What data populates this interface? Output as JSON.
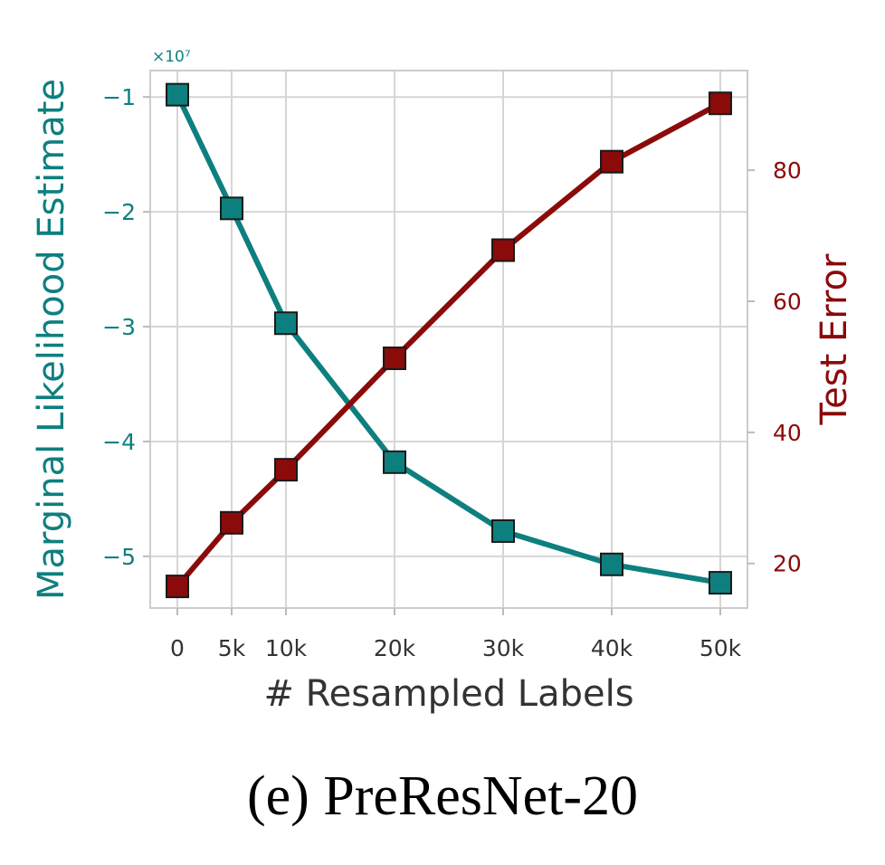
{
  "colors": {
    "left_series": "#0e7f7f",
    "right_series": "#8b0a0a",
    "grid": "#d6d6d6",
    "marker_edge": "#1a1a1a"
  },
  "caption": "(e) PreResNet-20",
  "chart_data": {
    "type": "line",
    "x": [
      0,
      5000,
      10000,
      20000,
      30000,
      40000,
      50000
    ],
    "xtick_labels": [
      "0",
      "5k",
      "10k",
      "20k",
      "30k",
      "40k",
      "50k"
    ],
    "xlabel": "# Resampled Labels",
    "grid": true,
    "marker": "square",
    "left_axis": {
      "label": "Marginal Likelihood Estimate",
      "multiplier": "×10⁷",
      "ticks": [
        -1,
        -2,
        -3,
        -4,
        -5
      ],
      "tick_labels": [
        "−1",
        "−2",
        "−3",
        "−4",
        "−5"
      ],
      "ylim": [
        -5.45,
        -0.77
      ]
    },
    "right_axis": {
      "label": "Test Error",
      "ticks": [
        20,
        40,
        60,
        80
      ],
      "tick_labels": [
        "20",
        "40",
        "60",
        "80"
      ],
      "ylim": [
        13.2,
        95.2
      ]
    },
    "series": [
      {
        "axis": "left",
        "color": "#0e7f7f",
        "values": [
          -0.98,
          -1.97,
          -2.97,
          -4.18,
          -4.78,
          -5.07,
          -5.23
        ]
      },
      {
        "axis": "right",
        "color": "#8b0a0a",
        "values": [
          16.5,
          26.2,
          34.3,
          51.3,
          67.8,
          81.3,
          90.2
        ]
      }
    ]
  }
}
